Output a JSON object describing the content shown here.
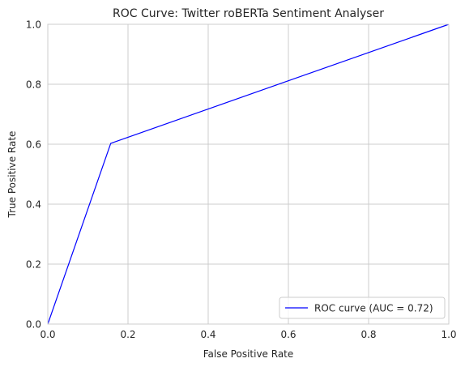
{
  "chart_data": {
    "type": "line",
    "title": "ROC Curve: Twitter roBERTa Sentiment Analyser",
    "xlabel": "False Positive Rate",
    "ylabel": "True Positive Rate",
    "xlim": [
      0.0,
      1.0
    ],
    "ylim": [
      0.0,
      1.0
    ],
    "xticks": [
      "0.0",
      "0.2",
      "0.4",
      "0.6",
      "0.8",
      "1.0"
    ],
    "yticks": [
      "0.0",
      "0.2",
      "0.4",
      "0.6",
      "0.8",
      "1.0"
    ],
    "grid": true,
    "legend_position": "lower-right",
    "series": [
      {
        "name": "ROC curve (AUC = 0.72)",
        "color": "#0000ff",
        "x": [
          0.0,
          0.157,
          1.0
        ],
        "y": [
          0.0,
          0.603,
          1.0
        ]
      }
    ]
  },
  "colors": {
    "grid": "#cccccc",
    "spine": "#cccccc",
    "text": "#262626"
  }
}
